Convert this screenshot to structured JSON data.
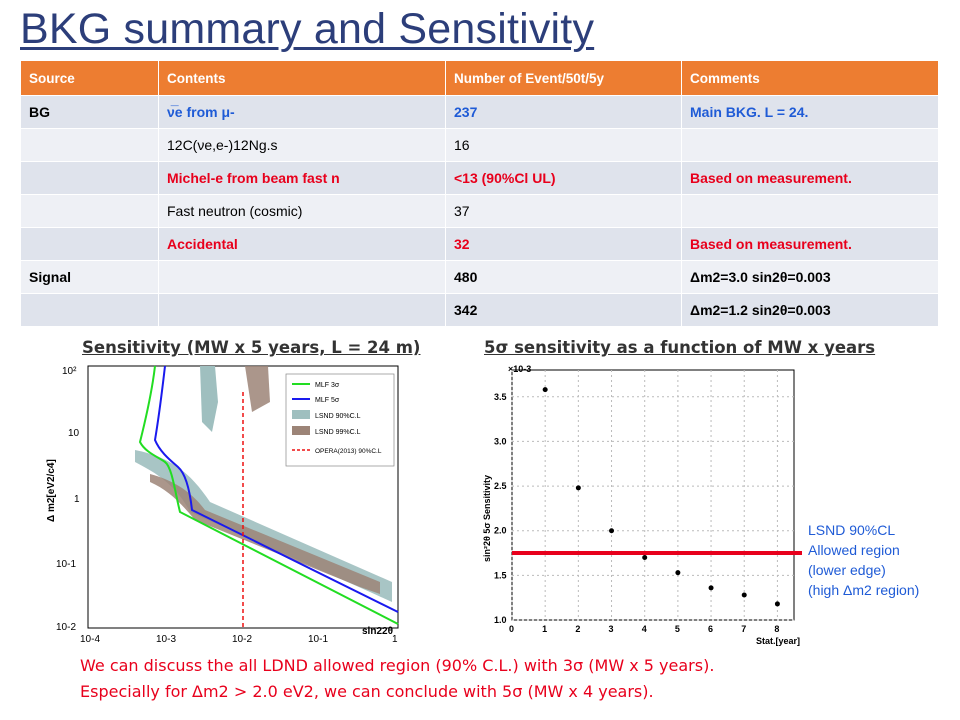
{
  "slide": {
    "title": "BKG summary and Sensitivity"
  },
  "table": {
    "headers": [
      "Source",
      "Contents",
      "Number of Event/50t/5y",
      "Comments"
    ],
    "rows": [
      {
        "source": "BG",
        "contents": "ν̅e from μ-",
        "events": "237",
        "comments": "Main BKG. L = 24."
      },
      {
        "source": "",
        "contents": "12C(νe,e-)12Ng.s",
        "events": "16",
        "comments": ""
      },
      {
        "source": "",
        "contents": "Michel-e from beam fast n",
        "events": "<13 (90%Cl UL)",
        "comments": "Based on measurement."
      },
      {
        "source": "",
        "contents": "Fast neutron (cosmic)",
        "events": "37",
        "comments": ""
      },
      {
        "source": "",
        "contents": "Accidental",
        "events": "32",
        "comments": "Based on measurement."
      },
      {
        "source": "Signal",
        "contents": "",
        "events": "480",
        "comments": "Δm2=3.0  sin2θ=0.003"
      },
      {
        "source": "",
        "contents": "",
        "events": "342",
        "comments": "Δm2=1.2 sin2θ=0.003"
      }
    ]
  },
  "left_plot": {
    "heading": "Sensitivity (MW x 5 years, L = 24 m)",
    "ylabel": "Δ m2[eV2/c4]",
    "xlabel": "sin22θ",
    "yticks": [
      "10²",
      "10",
      "1",
      "10-1",
      "10-2"
    ],
    "xticks": [
      "10-4",
      "10-3",
      "10-2",
      "10-1",
      "1"
    ],
    "legend": [
      "MLF 3σ",
      "MLF 5σ",
      "LSND 90%C.L",
      "LSND 99%C.L",
      "OPERA(2013) 90%C.L"
    ],
    "colors": {
      "mlf3": "#22dd22",
      "mlf5": "#1a1aee",
      "lsnd90": "#9fbfbf",
      "lsnd99": "#9c8477",
      "opera": "#ee1111"
    }
  },
  "right_plot": {
    "heading": "5σ sensitivity as a function of MW x years",
    "ylabel": "sin²2θ 5σ Sensitivity",
    "xlabel": "Stat.[year]",
    "exponent": "×10-3",
    "yticks": [
      "1.0",
      "1.5",
      "2.0",
      "2.5",
      "3.0",
      "3.5"
    ],
    "xticks": [
      "0",
      "1",
      "2",
      "3",
      "4",
      "5",
      "6",
      "7",
      "8"
    ],
    "lsnd_line_color": "#e8001c"
  },
  "chart_data": [
    {
      "type": "scatter",
      "xlabel": "Stat.[year]",
      "ylabel": "sin²2θ 5σ Sensitivity",
      "y_multiplier": "×10-3",
      "xlim": [
        0,
        8.5
      ],
      "ylim": [
        1.0,
        3.8
      ],
      "series": [
        {
          "x": [
            1,
            2,
            3,
            4,
            5,
            6,
            7,
            8
          ],
          "y": [
            3.58,
            2.48,
            2.0,
            1.7,
            1.53,
            1.36,
            1.28,
            1.18
          ]
        }
      ],
      "reference_line": {
        "y": 1.75,
        "label": "LSND 90%CL Allowed region (lower edge) (high Δm2 region)"
      }
    }
  ],
  "side_note": {
    "line1": "LSND 90%CL",
    "line2": "Allowed region",
    "line3": "(lower edge)",
    "line4": "(high Δm2 region)"
  },
  "conclusion": {
    "line1": "We can discuss the all LDND allowed region (90% C.L.) with 3σ (MW x 5 years).",
    "line2": "Especially for Δm2 > 2.0 eV2, we can conclude with 5σ (MW x 4 years)."
  }
}
